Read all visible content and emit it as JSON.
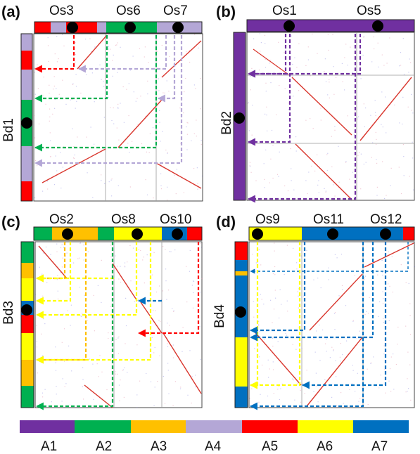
{
  "colors": {
    "A1": "#7030a0",
    "A2": "#00b050",
    "A3": "#ffc000",
    "A4": "#b4a7d6",
    "A5": "#ff0000",
    "A6": "#ffff00",
    "A7": "#0070c0",
    "dot": "#000000"
  },
  "legend": [
    "A1",
    "A2",
    "A3",
    "A4",
    "A5",
    "A6",
    "A7"
  ],
  "panels": [
    {
      "id": "a",
      "label": "(a)",
      "y_label": "Bd1",
      "x_chromosomes": [
        "Os3",
        "Os6",
        "Os7"
      ],
      "top_segments": [
        "A5",
        "A4",
        "A5",
        "A4",
        "A2",
        "A4"
      ],
      "left_segments": [
        "A4",
        "A5",
        "A4",
        "A2",
        "A4",
        "A4",
        "A5"
      ]
    },
    {
      "id": "b",
      "label": "(b)",
      "y_label": "Bd2",
      "x_chromosomes": [
        "Os1",
        "Os5"
      ],
      "top_segments": [
        "A1",
        "A1"
      ],
      "left_segments": [
        "A1"
      ]
    },
    {
      "id": "c",
      "label": "(c)",
      "y_label": "Bd3",
      "x_chromosomes": [
        "Os2",
        "Os8",
        "Os10"
      ],
      "top_segments": [
        "A2",
        "A3",
        "A2",
        "A6",
        "A7",
        "A5"
      ],
      "left_segments": [
        "A2",
        "A3",
        "A6",
        "A7",
        "A5",
        "A6",
        "A3",
        "A2"
      ]
    },
    {
      "id": "d",
      "label": "(d)",
      "y_label": "Bd4",
      "x_chromosomes": [
        "Os9",
        "Os11",
        "Os12"
      ],
      "top_segments": [
        "A6",
        "A7",
        "A7",
        "A5"
      ],
      "left_segments": [
        "A5",
        "A7",
        "A3",
        "A7",
        "A6",
        "A7"
      ]
    }
  ]
}
